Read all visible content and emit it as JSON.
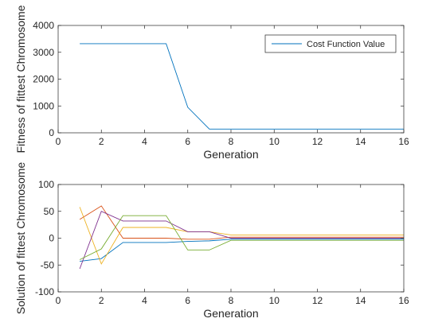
{
  "chart_data": [
    {
      "type": "line",
      "xlabel": "Generation",
      "ylabel": "Fitness of fittest Chromosome",
      "xlim": [
        0,
        16
      ],
      "ylim": [
        0,
        4000
      ],
      "xticks": [
        0,
        2,
        4,
        6,
        8,
        10,
        12,
        14,
        16
      ],
      "yticks": [
        0,
        1000,
        2000,
        3000,
        4000
      ],
      "grid": false,
      "legend": "top-right",
      "series": [
        {
          "name": "Cost Function Value",
          "color": "#0072bd",
          "x": [
            1,
            2,
            3,
            4,
            5,
            6,
            7,
            8,
            9,
            10,
            11,
            12,
            13,
            14,
            15,
            16
          ],
          "y": [
            3320,
            3320,
            3320,
            3320,
            3320,
            950,
            140,
            140,
            140,
            140,
            140,
            140,
            140,
            140,
            140,
            140
          ]
        }
      ]
    },
    {
      "type": "line",
      "xlabel": "Generation",
      "ylabel": "Solution of fittest Chromosome",
      "xlim": [
        0,
        16
      ],
      "ylim": [
        -100,
        100
      ],
      "xticks": [
        0,
        2,
        4,
        6,
        8,
        10,
        12,
        14,
        16
      ],
      "yticks": [
        -100,
        -50,
        0,
        50,
        100
      ],
      "grid": false,
      "series": [
        {
          "color": "#0072bd",
          "x": [
            1,
            2,
            3,
            4,
            5,
            6,
            7,
            8,
            16
          ],
          "y": [
            -43,
            -38,
            -8,
            -8,
            -8,
            -6,
            -5,
            -2,
            -2
          ]
        },
        {
          "color": "#d95319",
          "x": [
            1,
            2,
            3,
            4,
            5,
            6,
            7,
            8,
            16
          ],
          "y": [
            35,
            60,
            0,
            0,
            0,
            -2,
            -2,
            2,
            2
          ]
        },
        {
          "color": "#edb120",
          "x": [
            1,
            2,
            3,
            4,
            5,
            6,
            7,
            8,
            16
          ],
          "y": [
            58,
            -48,
            20,
            20,
            20,
            12,
            12,
            6,
            6
          ]
        },
        {
          "color": "#7e2f8e",
          "x": [
            1,
            2,
            3,
            4,
            5,
            6,
            7,
            8,
            16
          ],
          "y": [
            -57,
            50,
            32,
            32,
            32,
            12,
            12,
            0,
            0
          ]
        },
        {
          "color": "#77ac30",
          "x": [
            1,
            2,
            3,
            4,
            5,
            6,
            7,
            8,
            16
          ],
          "y": [
            -40,
            -20,
            42,
            42,
            42,
            -22,
            -22,
            -4,
            -4
          ]
        }
      ]
    }
  ]
}
